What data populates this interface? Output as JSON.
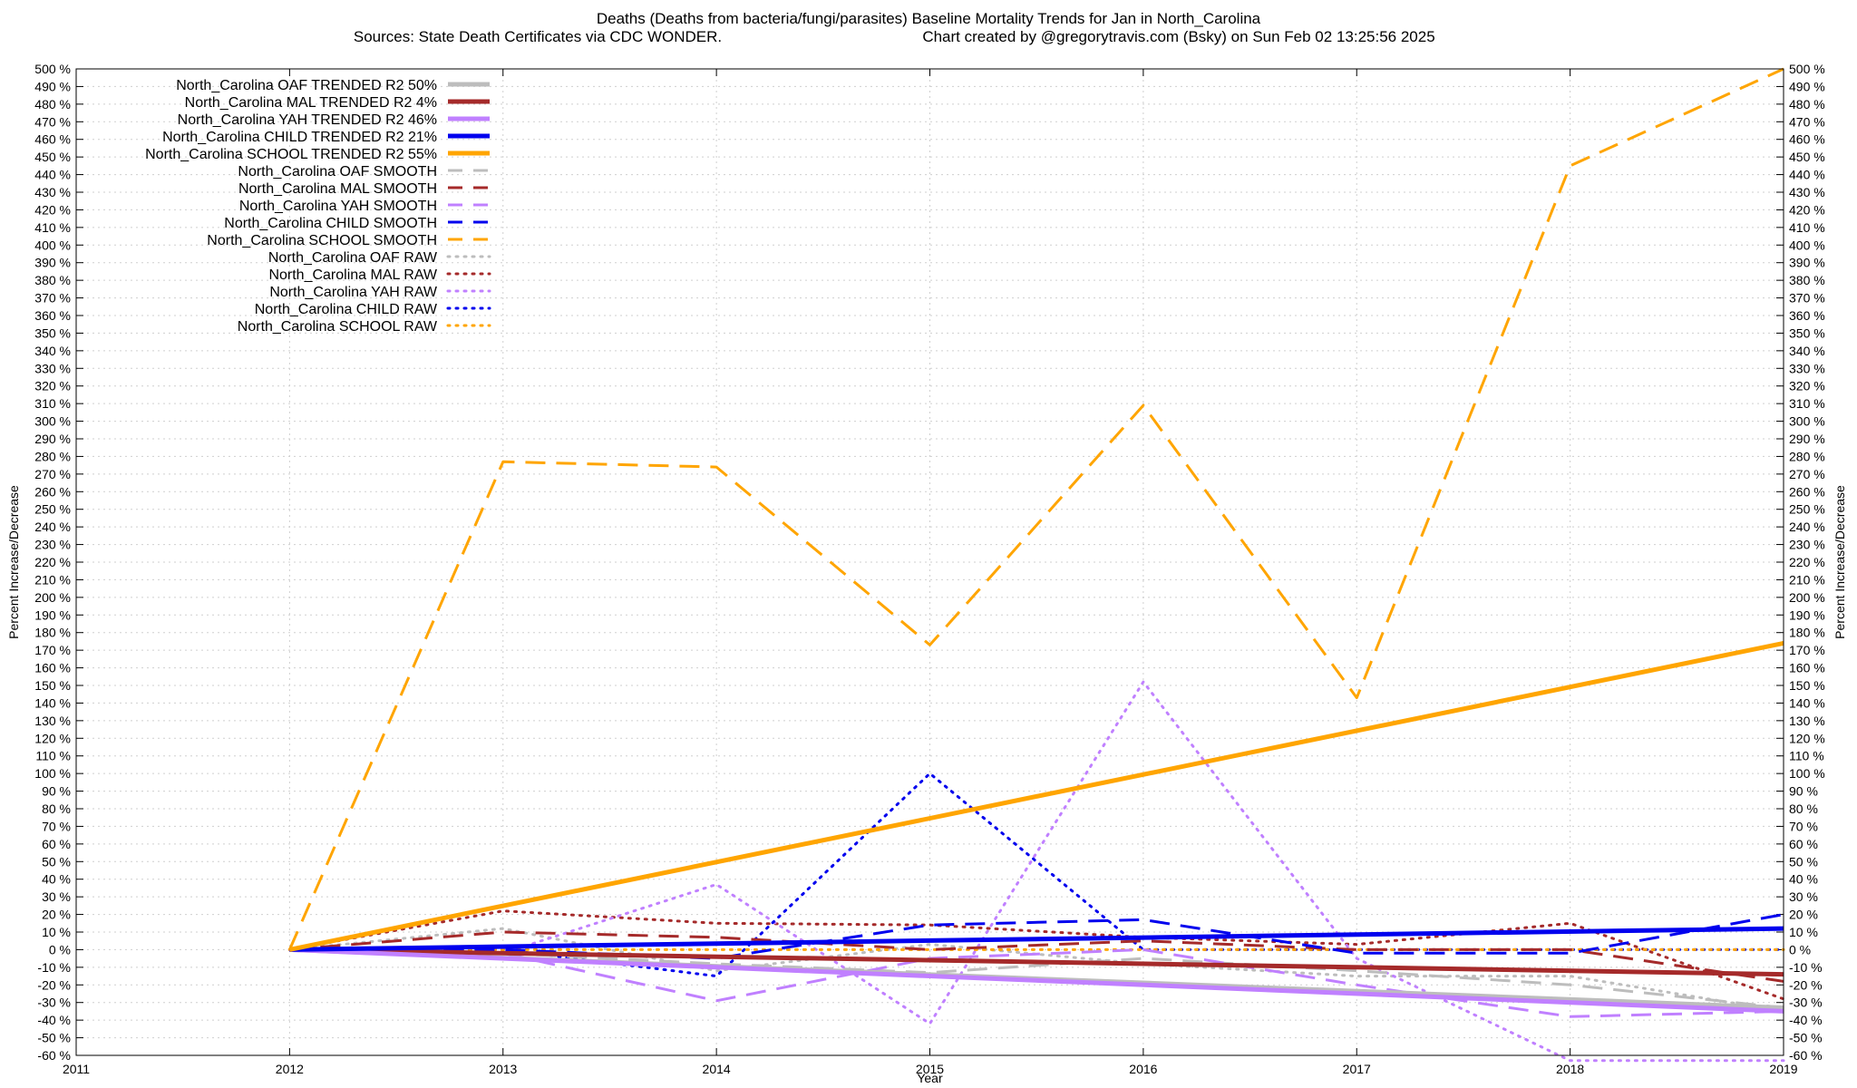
{
  "title_line1": "Deaths (Deaths from bacteria/fungi/parasites)  Baseline Mortality Trends for Jan in North_Carolina",
  "title_line2_left": "Sources: State Death Certificates via CDC WONDER.",
  "title_line2_right": "Chart created by @gregorytravis.com (Bsky) on Sun Feb 02 13:25:56 2025",
  "chart_data": {
    "type": "line",
    "xlabel": "Year",
    "ylabel": "Percent Increase/Decrease",
    "y2label": "Percent Increase/Decrease",
    "xlim": [
      2011,
      2019
    ],
    "ylim": [
      -60,
      500
    ],
    "x_ticks": [
      2011,
      2012,
      2013,
      2014,
      2015,
      2016,
      2017,
      2018,
      2019
    ],
    "y_tick_step": 10,
    "y_tick_suffix": " %",
    "grid": true,
    "legend_position": "top-left",
    "series": [
      {
        "name": "North_Carolina OAF TRENDED R2  50%",
        "style": "solid",
        "width": 5,
        "color": "#bdbdbd",
        "x": [
          2012,
          2019
        ],
        "y": [
          0,
          -33
        ]
      },
      {
        "name": "North_Carolina MAL TRENDED R2   4%",
        "style": "solid",
        "width": 5,
        "color": "#a52a2a",
        "x": [
          2012,
          2019
        ],
        "y": [
          0,
          -14
        ]
      },
      {
        "name": "North_Carolina YAH TRENDED R2  46%",
        "style": "solid",
        "width": 5,
        "color": "#c080ff",
        "x": [
          2012,
          2019
        ],
        "y": [
          0,
          -35
        ]
      },
      {
        "name": "North_Carolina CHILD TRENDED R2  21%",
        "style": "solid",
        "width": 5,
        "color": "#0000ee",
        "x": [
          2012,
          2019
        ],
        "y": [
          0,
          12
        ]
      },
      {
        "name": "North_Carolina SCHOOL TRENDED R2  55%",
        "style": "solid",
        "width": 5,
        "color": "#ffa500",
        "x": [
          2012,
          2019
        ],
        "y": [
          0,
          174
        ]
      },
      {
        "name": "North_Carolina OAF SMOOTH",
        "style": "dashed",
        "width": 3,
        "color": "#bdbdbd",
        "x": [
          2012,
          2013,
          2014,
          2015,
          2016,
          2017,
          2018,
          2019
        ],
        "y": [
          0,
          -2,
          -8,
          -13,
          -5,
          -12,
          -20,
          -33
        ]
      },
      {
        "name": "North_Carolina MAL SMOOTH",
        "style": "dashed",
        "width": 3,
        "color": "#a52a2a",
        "x": [
          2012,
          2013,
          2014,
          2015,
          2016,
          2017,
          2018,
          2019
        ],
        "y": [
          0,
          10,
          7,
          0,
          5,
          0,
          0,
          -18
        ]
      },
      {
        "name": "North_Carolina YAH SMOOTH",
        "style": "dashed",
        "width": 3,
        "color": "#c080ff",
        "x": [
          2012,
          2013,
          2014,
          2015,
          2016,
          2017,
          2018,
          2019
        ],
        "y": [
          0,
          -2,
          -29,
          -5,
          0,
          -20,
          -38,
          -35
        ]
      },
      {
        "name": "North_Carolina CHILD SMOOTH",
        "style": "dashed",
        "width": 3,
        "color": "#0000ee",
        "x": [
          2012,
          2013,
          2014,
          2015,
          2016,
          2017,
          2018,
          2019
        ],
        "y": [
          0,
          0,
          -5,
          14,
          17,
          -2,
          -2,
          20
        ]
      },
      {
        "name": "North_Carolina SCHOOL SMOOTH",
        "style": "dashed",
        "width": 3,
        "color": "#ffa500",
        "x": [
          2012,
          2013,
          2014,
          2015,
          2016,
          2017,
          2018,
          2019
        ],
        "y": [
          0,
          277,
          274,
          173,
          309,
          143,
          445,
          500
        ]
      },
      {
        "name": "North_Carolina OAF RAW",
        "style": "dotted",
        "width": 3,
        "color": "#bdbdbd",
        "x": [
          2012,
          2013,
          2014,
          2015,
          2016,
          2017,
          2018,
          2019
        ],
        "y": [
          0,
          12,
          -12,
          3,
          -8,
          -15,
          -15,
          -35
        ]
      },
      {
        "name": "North_Carolina MAL RAW",
        "style": "dotted",
        "width": 3,
        "color": "#a52a2a",
        "x": [
          2012,
          2013,
          2014,
          2015,
          2016,
          2017,
          2018,
          2019
        ],
        "y": [
          0,
          22,
          15,
          14,
          7,
          3,
          15,
          -28
        ]
      },
      {
        "name": "North_Carolina YAH RAW",
        "style": "dotted",
        "width": 3,
        "color": "#c080ff",
        "x": [
          2012,
          2013,
          2014,
          2015,
          2016,
          2017,
          2018,
          2019
        ],
        "y": [
          0,
          -2,
          37,
          -42,
          152,
          -5,
          -63,
          -63
        ]
      },
      {
        "name": "North_Carolina CHILD RAW",
        "style": "dotted",
        "width": 3,
        "color": "#0000ee",
        "x": [
          2012,
          2013,
          2014,
          2015,
          2016,
          2017,
          2018,
          2019
        ],
        "y": [
          0,
          0,
          -15,
          100,
          0,
          0,
          0,
          0
        ]
      },
      {
        "name": "North_Carolina SCHOOL RAW",
        "style": "dotted",
        "width": 3,
        "color": "#ffa500",
        "x": [
          2012,
          2013,
          2014,
          2015,
          2016,
          2017,
          2018,
          2019
        ],
        "y": [
          0,
          0,
          0,
          0,
          0,
          0,
          0,
          0
        ]
      }
    ]
  }
}
